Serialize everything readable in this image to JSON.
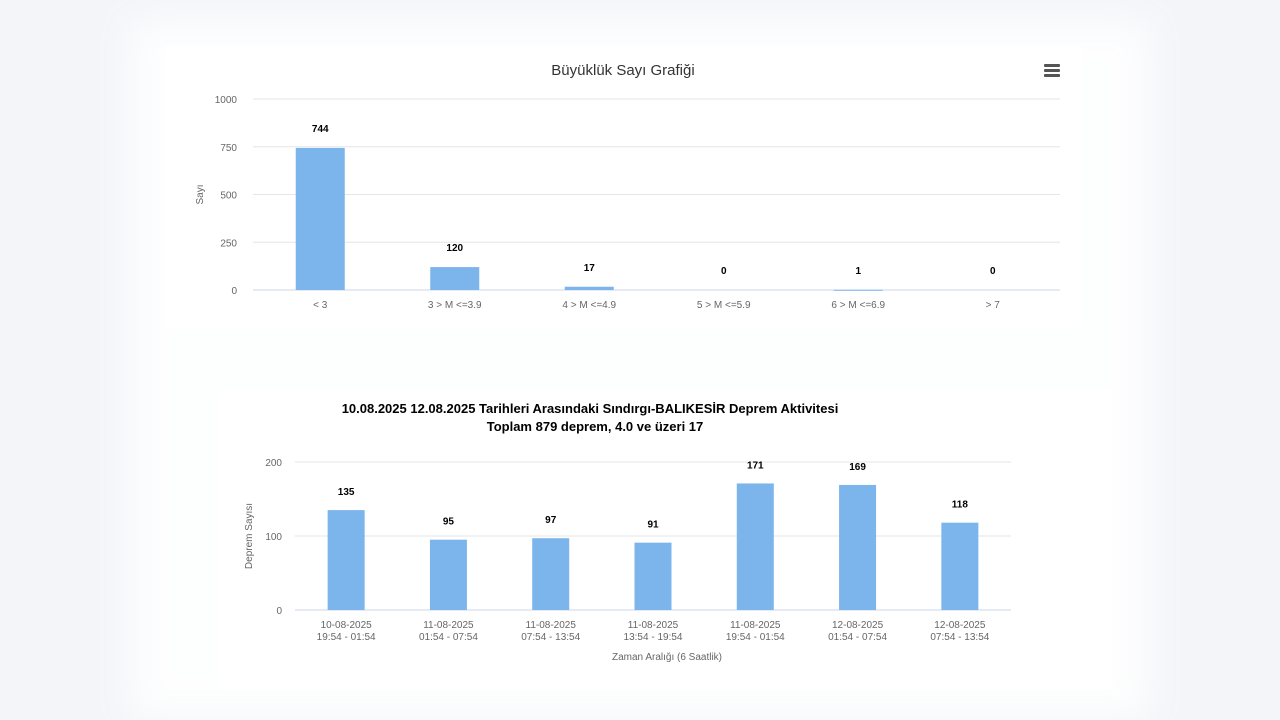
{
  "colors": {
    "bar": "#7cb5ec",
    "grid": "#e6e6e6",
    "axis": "#ccd6eb",
    "text": "#333333",
    "label": "#666666"
  },
  "menu_icon": "hamburger-menu-icon",
  "chart_data": [
    {
      "type": "bar",
      "title": "Büyüklük Sayı Grafiği",
      "xlabel": "",
      "ylabel": "Sayı",
      "ylim": [
        0,
        1000
      ],
      "yticks": [
        0,
        250,
        500,
        750,
        1000
      ],
      "grid": true,
      "categories": [
        "< 3",
        "3 > M <=3.9",
        "4 > M <=4.9",
        "5 > M <=5.9",
        "6 > M <=6.9",
        "> 7"
      ],
      "values": [
        744,
        120,
        17,
        0,
        1,
        0
      ]
    },
    {
      "type": "bar",
      "title": "10.08.2025 12.08.2025 Tarihleri Arasındaki Sındırgı-BALIKESİR Deprem Aktivitesi",
      "subtitle": "Toplam  879  deprem, 4.0 ve üzeri 17",
      "xlabel": "Zaman Aralığı (6 Saatlik)",
      "ylabel": "Deprem Sayısı",
      "ylim": [
        0,
        200
      ],
      "yticks": [
        0,
        100,
        200
      ],
      "grid": true,
      "categories": [
        [
          "10-08-2025",
          "19:54 - 01:54"
        ],
        [
          "11-08-2025",
          "01:54 - 07:54"
        ],
        [
          "11-08-2025",
          "07:54 - 13:54"
        ],
        [
          "11-08-2025",
          "13:54 - 19:54"
        ],
        [
          "11-08-2025",
          "19:54 - 01:54"
        ],
        [
          "12-08-2025",
          "01:54 - 07:54"
        ],
        [
          "12-08-2025",
          "07:54 - 13:54"
        ]
      ],
      "values": [
        135,
        95,
        97,
        91,
        171,
        169,
        118
      ]
    }
  ]
}
